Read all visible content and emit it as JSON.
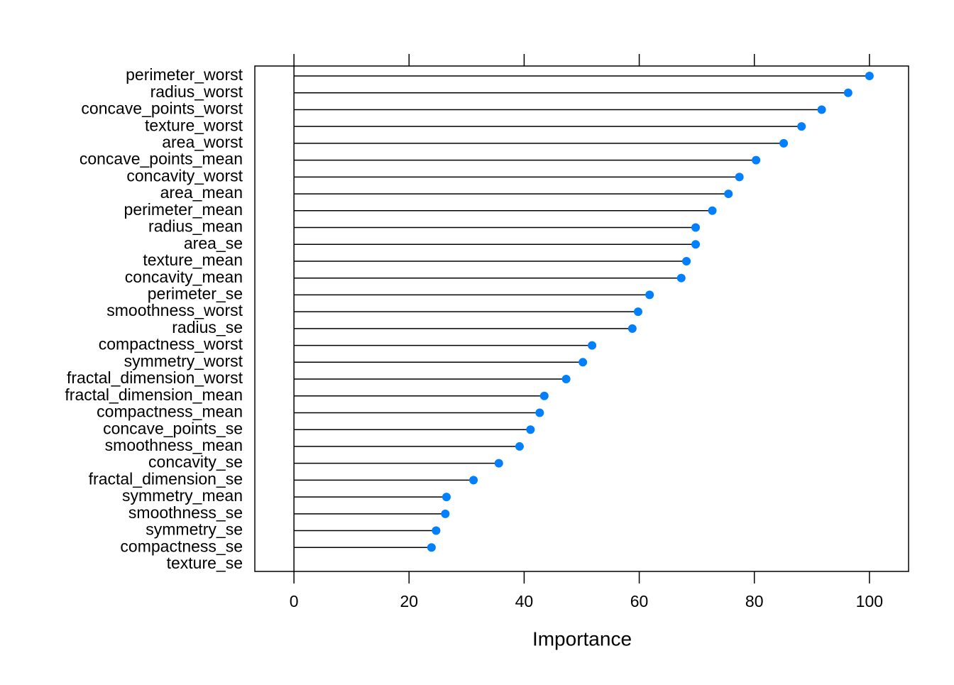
{
  "chart_data": {
    "type": "lollipop",
    "x_label": "Importance",
    "categories": [
      "perimeter_worst",
      "radius_worst",
      "concave_points_worst",
      "texture_worst",
      "area_worst",
      "concave_points_mean",
      "concavity_worst",
      "area_mean",
      "perimeter_mean",
      "radius_mean",
      "area_se",
      "texture_mean",
      "concavity_mean",
      "perimeter_se",
      "smoothness_worst",
      "radius_se",
      "compactness_worst",
      "symmetry_worst",
      "fractal_dimension_worst",
      "fractal_dimension_mean",
      "compactness_mean",
      "concave_points_se",
      "smoothness_mean",
      "concavity_se",
      "fractal_dimension_se",
      "symmetry_mean",
      "smoothness_se",
      "symmetry_se",
      "compactness_se",
      "texture_se"
    ],
    "values": [
      100,
      96.3,
      91.7,
      88.2,
      85.1,
      80.3,
      77.4,
      75.5,
      72.7,
      69.8,
      69.8,
      68.2,
      67.3,
      61.8,
      59.8,
      58.8,
      51.8,
      50.2,
      47.3,
      43.5,
      42.7,
      41.1,
      39.2,
      35.6,
      31.2,
      26.5,
      26.3,
      24.7,
      23.9,
      null
    ],
    "color": "#0080ff",
    "xlim": [
      -6.8,
      106.8
    ],
    "xticks": [
      0,
      20,
      40,
      60,
      80,
      100
    ]
  }
}
